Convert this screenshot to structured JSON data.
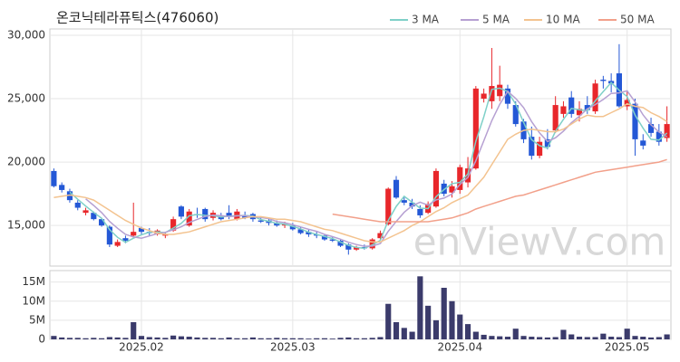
{
  "chart_data": [
    {
      "type": "candlestick",
      "title": "온코닉테라퓨틱스(476060)",
      "watermark": "enViewV.com",
      "up_color": "#e8272b",
      "down_color": "#2458d6",
      "grid": true,
      "ylim": [
        11800,
        30500
      ],
      "yticks": [
        {
          "value": 15000,
          "label": "15,000"
        },
        {
          "value": 20000,
          "label": "20,000"
        },
        {
          "value": 25000,
          "label": "25,000"
        },
        {
          "value": 30000,
          "label": "30,000"
        }
      ],
      "open": [
        19300,
        18200,
        17700,
        16800,
        16000,
        16000,
        15500,
        14900,
        13400,
        14000,
        14200,
        14800,
        14500,
        14300,
        14200,
        14600,
        16500,
        15000,
        15900,
        16300,
        15600,
        15800,
        16000,
        15500,
        15800,
        15900,
        15400,
        15400,
        15200,
        15000,
        15000,
        14700,
        14500,
        14300,
        14200,
        13900,
        13800,
        13500,
        13100,
        13300,
        13200,
        14000,
        15100,
        18600,
        17000,
        16800,
        16300,
        16000,
        16500,
        18300,
        17600,
        17800,
        18400,
        19500,
        25000,
        24800,
        25200,
        25800,
        24500,
        23200,
        22000,
        20500,
        21800,
        22500,
        23800,
        25100,
        23700,
        24500,
        24000,
        26500,
        26400,
        27000,
        24400,
        24600,
        21700,
        23000,
        22400,
        21900
      ],
      "high": [
        19500,
        18400,
        17900,
        17000,
        16400,
        16100,
        15600,
        15000,
        13900,
        14200,
        16800,
        14900,
        14800,
        14700,
        14500,
        15700,
        16600,
        16300,
        16400,
        16400,
        16200,
        16000,
        16600,
        16300,
        16100,
        16000,
        15700,
        15600,
        15400,
        15300,
        15200,
        14900,
        14700,
        14500,
        14300,
        14100,
        13900,
        13600,
        13400,
        13500,
        14000,
        14600,
        18000,
        18900,
        17300,
        17100,
        16600,
        16900,
        19500,
        18600,
        18500,
        19800,
        20400,
        26000,
        25800,
        29000,
        27600,
        26100,
        24800,
        23400,
        22800,
        22000,
        22600,
        25200,
        24800,
        25600,
        24800,
        25200,
        26500,
        26800,
        27000,
        29300,
        25600,
        25000,
        22200,
        23500,
        23000,
        24400
      ],
      "low": [
        18000,
        17600,
        16800,
        16200,
        15800,
        15400,
        14900,
        13300,
        13300,
        13600,
        14000,
        14300,
        14200,
        14200,
        14000,
        14500,
        15500,
        14900,
        15600,
        15300,
        15400,
        15400,
        15500,
        15400,
        15500,
        15300,
        15200,
        15000,
        14900,
        14800,
        14600,
        14300,
        14100,
        14000,
        13800,
        13700,
        13300,
        12700,
        13000,
        13100,
        13100,
        13800,
        15000,
        17100,
        16600,
        16300,
        15600,
        15900,
        16400,
        17300,
        17200,
        17500,
        18000,
        19400,
        24700,
        24200,
        24800,
        24200,
        22800,
        21500,
        20200,
        20300,
        21000,
        22300,
        23500,
        23500,
        23200,
        23800,
        23800,
        25800,
        25500,
        24300,
        24100,
        20500,
        21000,
        22000,
        21300,
        21600
      ],
      "close": [
        18100,
        17800,
        17000,
        16400,
        16200,
        15500,
        15000,
        13500,
        13700,
        13800,
        14500,
        14500,
        14400,
        14600,
        14300,
        15500,
        15700,
        16100,
        15800,
        15500,
        16000,
        15500,
        15700,
        16100,
        15600,
        15500,
        15300,
        15200,
        15000,
        15100,
        14700,
        14400,
        14300,
        14200,
        13900,
        13800,
        13400,
        13100,
        13300,
        13200,
        13900,
        14400,
        17900,
        17200,
        16800,
        16500,
        15800,
        16700,
        19300,
        17500,
        18100,
        19600,
        19500,
        25800,
        25400,
        26000,
        26100,
        24600,
        23000,
        21800,
        20500,
        21600,
        21200,
        24500,
        24400,
        23800,
        24200,
        24100,
        26200,
        26400,
        26200,
        24400,
        24900,
        21800,
        21300,
        22300,
        21600,
        23000
      ],
      "series": [
        {
          "name": "3 MA",
          "color": "#7fd0c8",
          "values": [
            null,
            null,
            17633,
            17067,
            16533,
            16033,
            15567,
            14667,
            14067,
            13667,
            14000,
            14267,
            14467,
            14500,
            14433,
            14800,
            15167,
            15767,
            15867,
            15800,
            15767,
            15667,
            15733,
            15767,
            15800,
            15733,
            15467,
            15333,
            15167,
            15100,
            14933,
            14733,
            14467,
            14300,
            14133,
            13967,
            13700,
            13433,
            13267,
            13200,
            13467,
            13833,
            15400,
            16500,
            17300,
            16833,
            16367,
            16333,
            17267,
            17833,
            18300,
            18400,
            19067,
            21633,
            23567,
            25733,
            25833,
            25567,
            24567,
            23133,
            21767,
            21300,
            21100,
            22433,
            23367,
            24233,
            24133,
            24033,
            24833,
            25567,
            26267,
            25667,
            25167,
            23700,
            22667,
            21800,
            21733,
            22300
          ]
        },
        {
          "name": "5 MA",
          "color": "#b6a0d2",
          "values": [
            null,
            null,
            null,
            null,
            17100,
            16580,
            16020,
            15320,
            14780,
            14300,
            14100,
            14000,
            14180,
            14360,
            14460,
            14660,
            14900,
            15240,
            15480,
            15720,
            15820,
            15780,
            15700,
            15760,
            15780,
            15680,
            15640,
            15540,
            15320,
            15220,
            15060,
            14880,
            14700,
            14540,
            14300,
            14120,
            13920,
            13680,
            13500,
            13360,
            13380,
            13580,
            14540,
            15320,
            16040,
            16560,
            16840,
            16600,
            17020,
            17160,
            17480,
            18240,
            18800,
            20100,
            21680,
            23260,
            24560,
            25580,
            25020,
            24300,
            23200,
            22300,
            21620,
            21920,
            22440,
            23100,
            23620,
            24200,
            24540,
            24940,
            25420,
            25460,
            25620,
            24740,
            23720,
            22940,
            22380,
            22000
          ]
        },
        {
          "name": "10 MA",
          "color": "#f3c38f",
          "values": [
            17200,
            17300,
            17400,
            17300,
            17200,
            17000,
            16600,
            16200,
            15800,
            15400,
            15100,
            14800,
            14600,
            14400,
            14300,
            14300,
            14400,
            14500,
            14700,
            14900,
            15100,
            15300,
            15400,
            15500,
            15600,
            15700,
            15700,
            15600,
            15500,
            15500,
            15400,
            15300,
            15100,
            14900,
            14700,
            14600,
            14400,
            14200,
            14000,
            13800,
            13700,
            13700,
            14000,
            14300,
            14600,
            15000,
            15300,
            15700,
            16100,
            16400,
            16800,
            17100,
            17400,
            18100,
            18800,
            19800,
            20800,
            21800,
            22200,
            22500,
            22600,
            22500,
            22400,
            22400,
            22600,
            23000,
            23400,
            23700,
            23600,
            23600,
            23900,
            24200,
            24600,
            24400,
            24300,
            23900,
            23600,
            23200
          ]
        },
        {
          "name": "50 MA",
          "color": "#f2a08a",
          "values": [
            null,
            null,
            null,
            null,
            null,
            null,
            null,
            null,
            null,
            null,
            null,
            null,
            null,
            null,
            null,
            null,
            null,
            null,
            null,
            null,
            null,
            null,
            null,
            null,
            null,
            null,
            null,
            null,
            null,
            null,
            null,
            null,
            null,
            null,
            null,
            15900,
            15800,
            15700,
            15600,
            15500,
            15400,
            15300,
            15300,
            15300,
            15300,
            15300,
            15300,
            15300,
            15400,
            15500,
            15600,
            15800,
            16000,
            16300,
            16500,
            16700,
            16900,
            17100,
            17300,
            17400,
            17600,
            17800,
            18000,
            18200,
            18400,
            18600,
            18800,
            19000,
            19200,
            19300,
            19400,
            19500,
            19600,
            19700,
            19800,
            19900,
            20000,
            20200
          ]
        }
      ]
    },
    {
      "type": "bar",
      "color": "#3b3b6b",
      "grid": true,
      "ylim": [
        0,
        18000000
      ],
      "yticks": [
        0,
        {
          "value": 5000000,
          "label": "5M"
        },
        {
          "value": 10000000,
          "label": "10M"
        },
        {
          "value": 15000000,
          "label": "15M"
        }
      ],
      "categories": [
        null,
        null,
        null,
        null,
        null,
        null,
        null,
        null,
        null,
        null,
        null,
        "2025.02",
        null,
        null,
        null,
        null,
        null,
        null,
        null,
        null,
        null,
        null,
        null,
        null,
        null,
        null,
        null,
        null,
        null,
        null,
        "2025.03",
        null,
        null,
        null,
        null,
        null,
        null,
        null,
        null,
        null,
        null,
        null,
        null,
        null,
        null,
        null,
        null,
        null,
        null,
        null,
        null,
        "2025.04",
        null,
        null,
        null,
        null,
        null,
        null,
        null,
        null,
        null,
        null,
        null,
        null,
        null,
        null,
        null,
        null,
        null,
        null,
        null,
        null,
        "2025.05",
        null,
        null,
        null,
        null,
        null
      ],
      "values": [
        900000,
        500000,
        400000,
        400000,
        300000,
        400000,
        300000,
        600000,
        500000,
        400000,
        4500000,
        900000,
        600000,
        500000,
        400000,
        1000000,
        800000,
        700000,
        500000,
        400000,
        400000,
        300000,
        500000,
        300000,
        300000,
        500000,
        300000,
        300000,
        400000,
        300000,
        300000,
        300000,
        200000,
        300000,
        300000,
        200000,
        400000,
        500000,
        300000,
        300000,
        400000,
        600000,
        9300000,
        4500000,
        3000000,
        2000000,
        16500000,
        8800000,
        5000000,
        13500000,
        10000000,
        6500000,
        4000000,
        2000000,
        1200000,
        900000,
        800000,
        700000,
        2800000,
        900000,
        700000,
        600000,
        500000,
        600000,
        2500000,
        1300000,
        700000,
        600000,
        600000,
        1500000,
        700000,
        600000,
        2800000,
        900000,
        700000,
        500000,
        600000,
        1300000
      ]
    }
  ]
}
